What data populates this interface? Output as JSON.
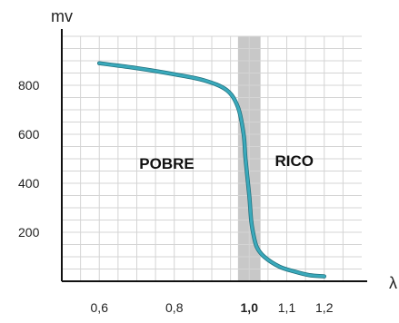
{
  "chart_data": {
    "type": "line",
    "title": "",
    "ylabel": "mv",
    "xlabel": "λ",
    "xlim": [
      0.5,
      1.3
    ],
    "ylim": [
      0,
      1000
    ],
    "grid": true,
    "x_ticks": [
      {
        "value": 0.6,
        "label": "0,6",
        "bold": false
      },
      {
        "value": 0.8,
        "label": "0,8",
        "bold": false
      },
      {
        "value": 1.0,
        "label": "1,0",
        "bold": true
      },
      {
        "value": 1.1,
        "label": "1,1",
        "bold": false
      },
      {
        "value": 1.2,
        "label": "1,2",
        "bold": false
      }
    ],
    "y_ticks": [
      {
        "value": 200,
        "label": "200"
      },
      {
        "value": 400,
        "label": "400"
      },
      {
        "value": 600,
        "label": "600"
      },
      {
        "value": 800,
        "label": "800"
      }
    ],
    "band": {
      "x_start": 0.97,
      "x_end": 1.03,
      "color": "#c8c8c8"
    },
    "annotations": [
      {
        "text": "POBRE",
        "x": 0.78,
        "y": 460
      },
      {
        "text": "RICO",
        "x": 1.12,
        "y": 470
      }
    ],
    "series": [
      {
        "color": "#3aa9bb",
        "x": [
          0.6,
          0.7,
          0.8,
          0.88,
          0.94,
          0.97,
          0.985,
          0.99,
          1.0,
          1.005,
          1.01,
          1.02,
          1.04,
          1.08,
          1.12,
          1.16,
          1.2
        ],
        "y": [
          890,
          870,
          845,
          820,
          780,
          710,
          600,
          500,
          350,
          250,
          200,
          140,
          100,
          60,
          40,
          25,
          20
        ]
      }
    ]
  }
}
